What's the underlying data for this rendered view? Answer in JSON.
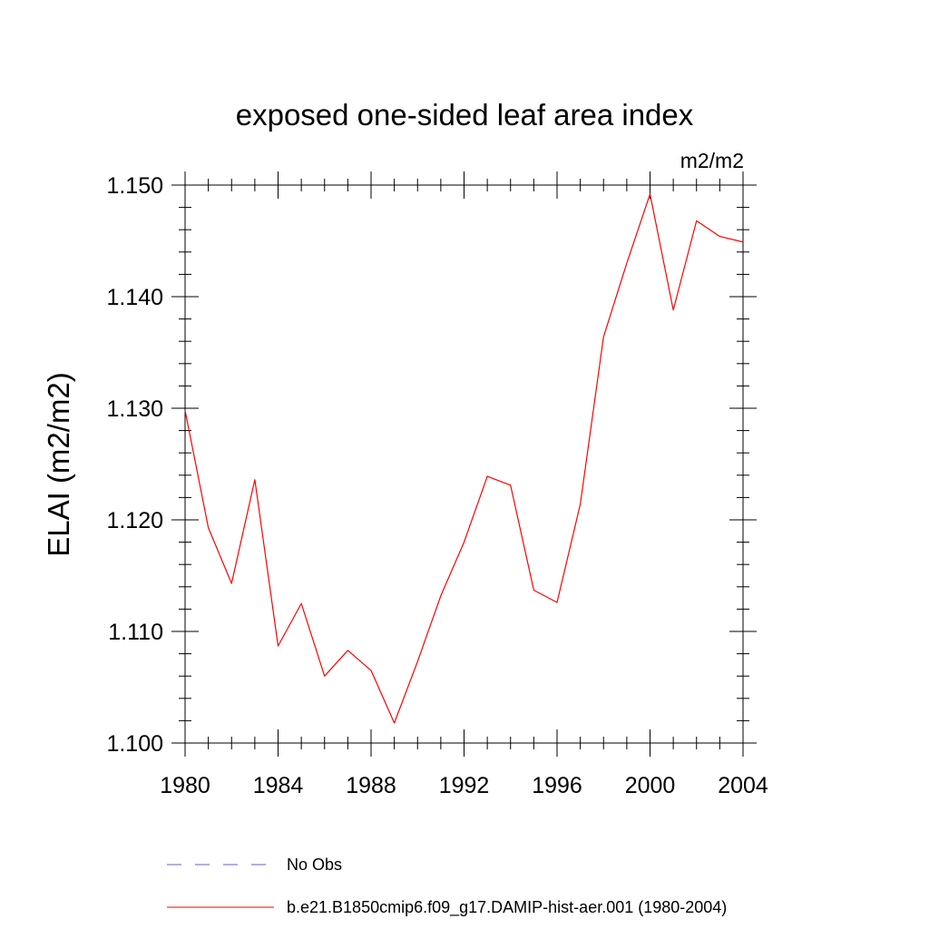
{
  "chart_data": {
    "type": "line",
    "title": "exposed one-sided leaf area index",
    "units": "m2/m2",
    "ylabel": "ELAI  (m2/m2)",
    "xlabel": "",
    "xlim": [
      1980,
      2004
    ],
    "ylim": [
      1.1,
      1.15
    ],
    "x_ticks": [
      "1980",
      "1984",
      "1988",
      "1992",
      "1996",
      "2000",
      "2004"
    ],
    "y_ticks": [
      "1.100",
      "1.110",
      "1.120",
      "1.130",
      "1.140",
      "1.150"
    ],
    "grid": false,
    "legend_position": "bottom",
    "series": [
      {
        "name": "b.e21.B1850cmip6.f09_g17.DAMIP-hist-aer.001 (1980-2004)",
        "color": "#ff0000",
        "style": "solid",
        "x": [
          1980,
          1981,
          1982,
          1983,
          1984,
          1985,
          1986,
          1987,
          1988,
          1989,
          1990,
          1991,
          1992,
          1993,
          1994,
          1995,
          1996,
          1997,
          1998,
          1999,
          2000,
          2001,
          2002,
          2003,
          2004
        ],
        "values": [
          1.1298,
          1.1193,
          1.1143,
          1.1236,
          1.1087,
          1.1125,
          1.106,
          1.1083,
          1.1065,
          1.1018,
          1.1073,
          1.1132,
          1.118,
          1.1239,
          1.1231,
          1.1137,
          1.1126,
          1.1214,
          1.1364,
          1.143,
          1.1492,
          1.1388,
          1.1468,
          1.1454,
          1.1449
        ]
      }
    ],
    "legend": [
      {
        "label": "No Obs",
        "color": "#6a5acd",
        "style": "dashed"
      },
      {
        "label": "b.e21.B1850cmip6.f09_g17.DAMIP-hist-aer.001 (1980-2004)",
        "color": "#ff0000",
        "style": "solid"
      }
    ]
  }
}
